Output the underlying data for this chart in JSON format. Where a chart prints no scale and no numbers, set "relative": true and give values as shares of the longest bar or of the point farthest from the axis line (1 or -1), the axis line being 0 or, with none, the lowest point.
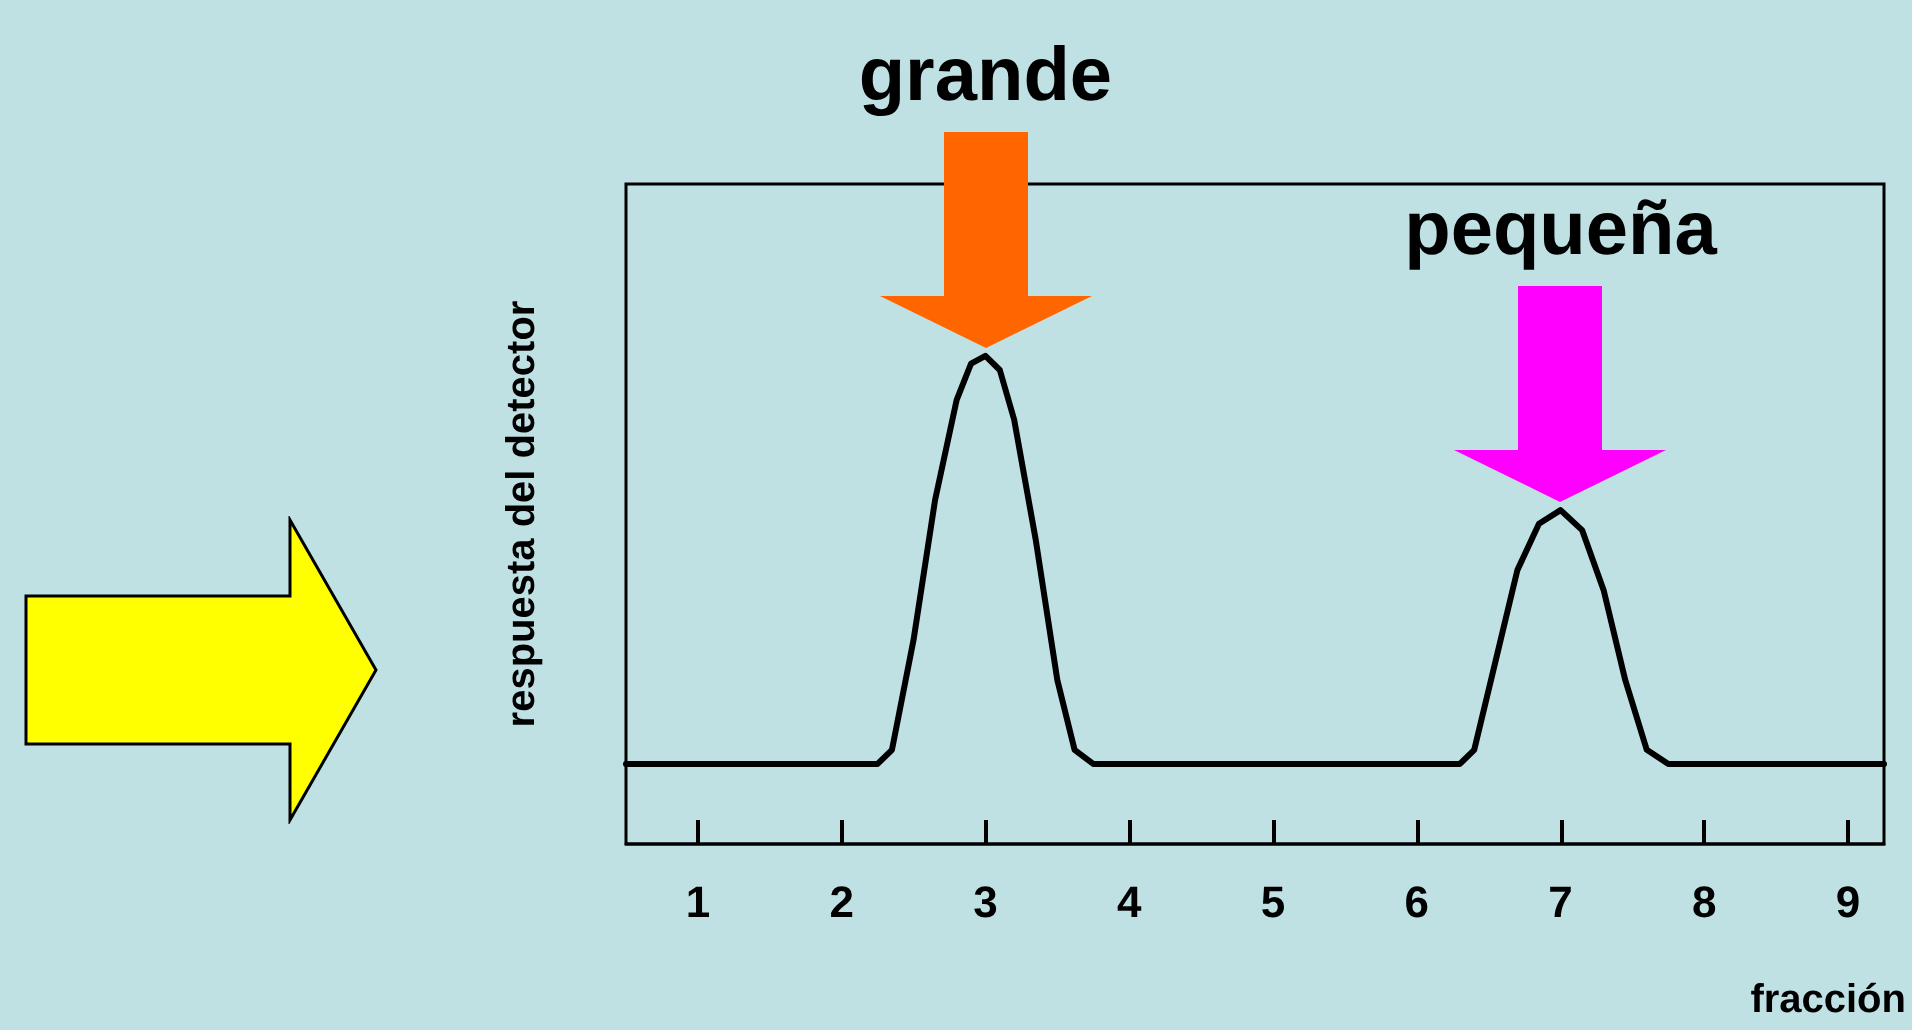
{
  "chart_data": {
    "type": "line",
    "relative": true,
    "xlabel": "fracción",
    "ylabel": "respuesta del detector",
    "x": [
      0.5,
      2.25,
      2.35,
      2.5,
      2.65,
      2.8,
      2.9,
      3.0,
      3.1,
      3.2,
      3.35,
      3.5,
      3.62,
      3.75,
      6.3,
      6.4,
      6.55,
      6.7,
      6.85,
      7.0,
      7.15,
      7.3,
      7.45,
      7.6,
      7.75,
      9.25
    ],
    "series": [
      {
        "color": "#000000",
        "values": [
          0.164,
          0.164,
          0.193,
          0.418,
          0.705,
          0.91,
          0.984,
          1,
          0.971,
          0.869,
          0.623,
          0.336,
          0.193,
          0.164,
          0.164,
          0.193,
          0.377,
          0.561,
          0.656,
          0.684,
          0.643,
          0.52,
          0.336,
          0.193,
          0.164,
          0.164
        ]
      }
    ],
    "xlim": [
      0.5,
      9.25
    ],
    "xticks": [
      1,
      2,
      3,
      4,
      5,
      6,
      7,
      8,
      9
    ],
    "annotations": [
      "grande",
      "pequeña"
    ],
    "grid": false,
    "marker": "none",
    "line_style": "solid"
  }
}
